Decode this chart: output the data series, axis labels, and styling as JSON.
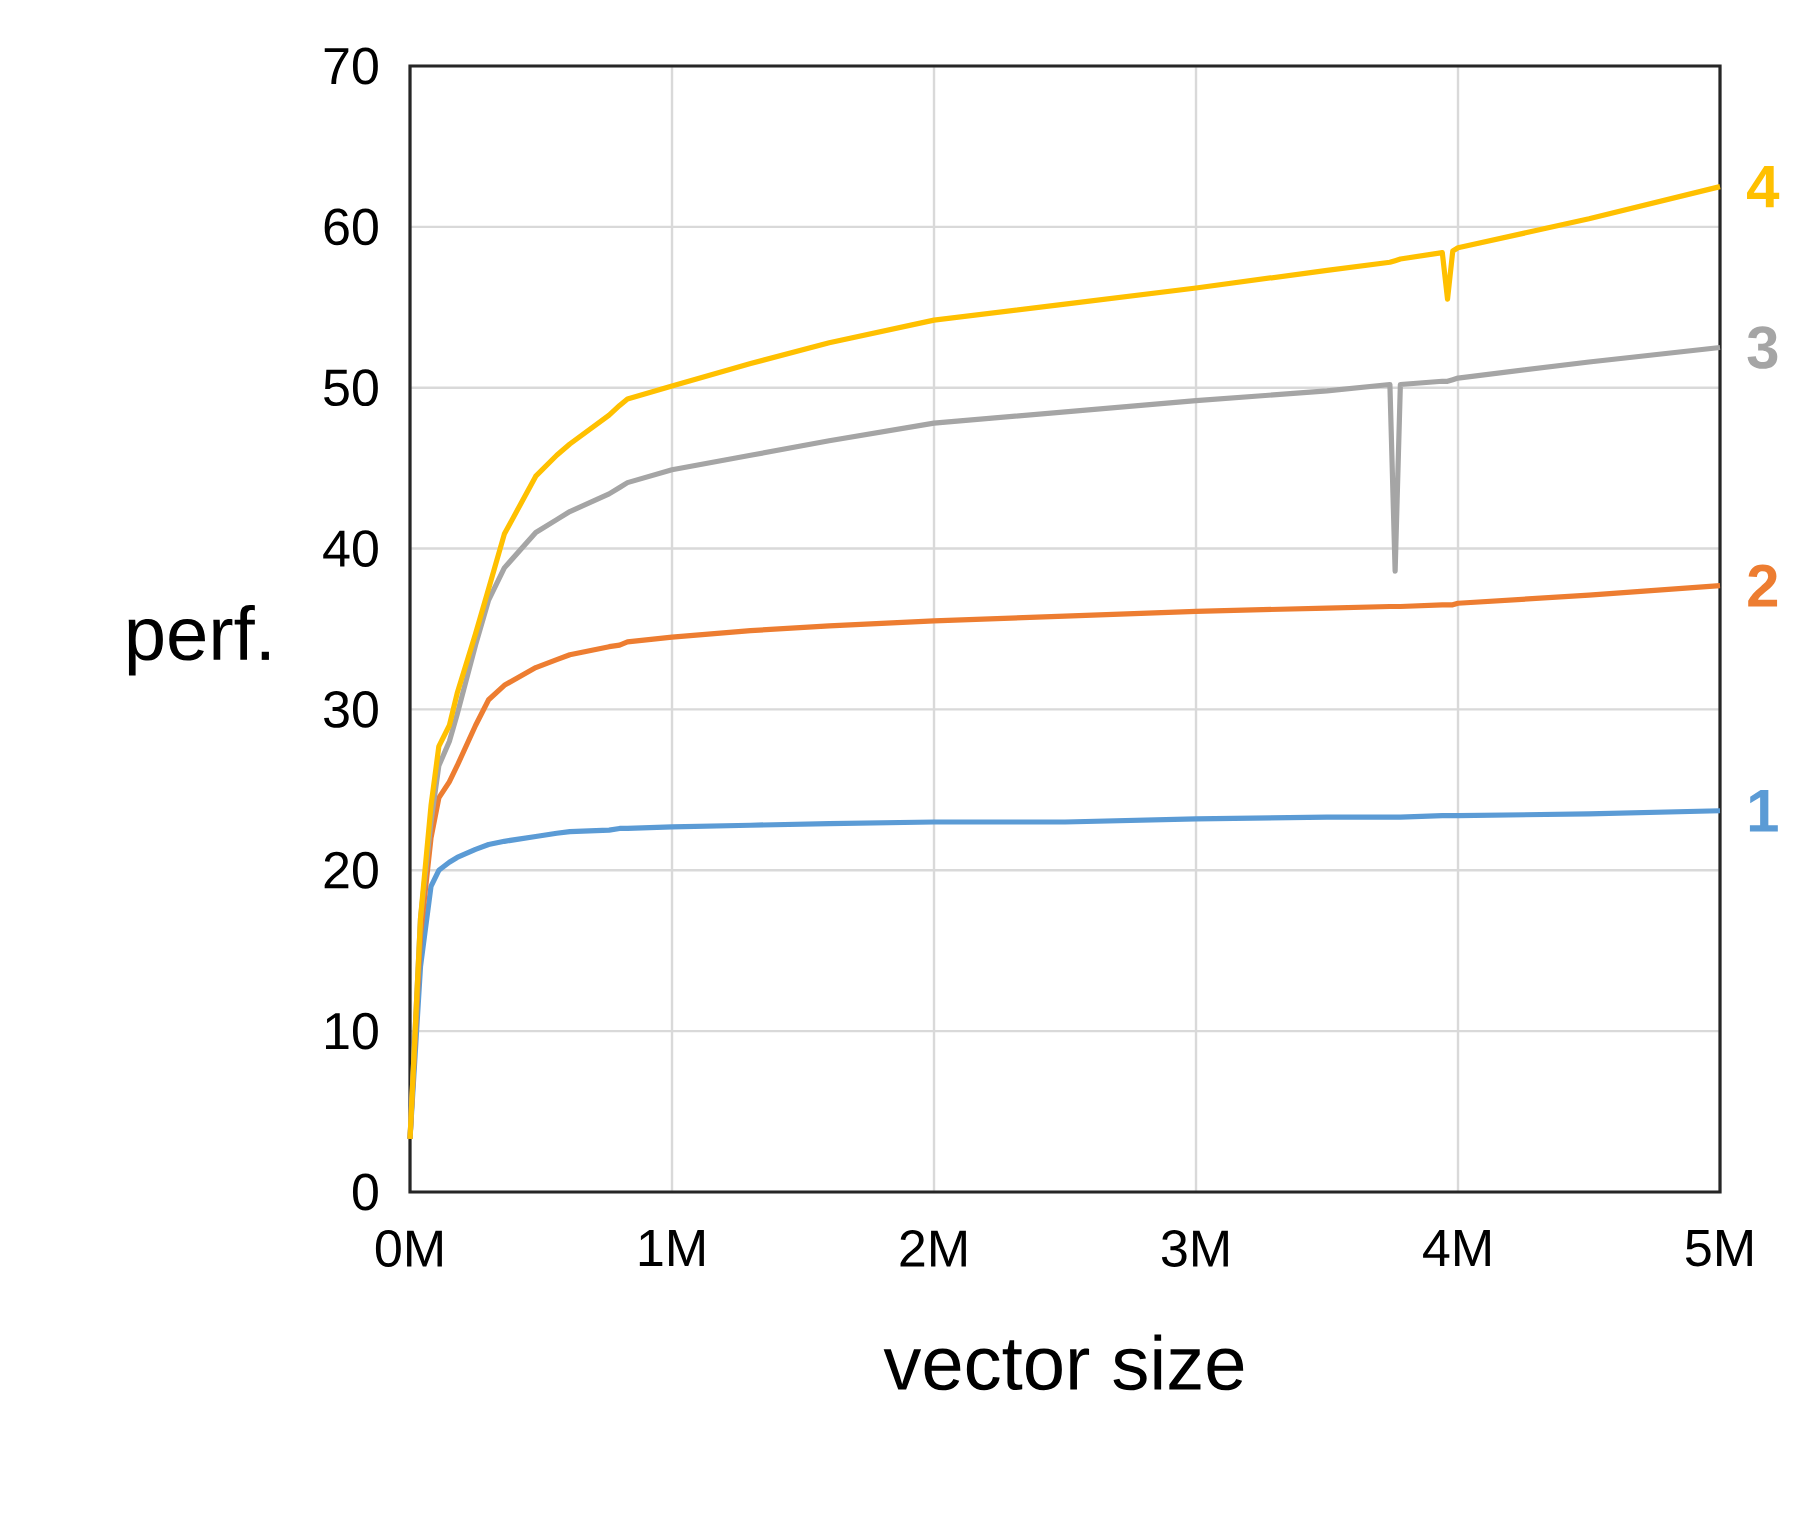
{
  "chart_data": {
    "type": "line",
    "xlabel": "vector size",
    "ylabel": "perf.",
    "xlim": [
      0,
      5
    ],
    "ylim": [
      0,
      70
    ],
    "xticks": [
      {
        "value": 0,
        "label": "0M"
      },
      {
        "value": 1,
        "label": "1M"
      },
      {
        "value": 2,
        "label": "2M"
      },
      {
        "value": 3,
        "label": "3M"
      },
      {
        "value": 4,
        "label": "4M"
      },
      {
        "value": 5,
        "label": "5M"
      }
    ],
    "yticks": [
      0,
      10,
      20,
      30,
      40,
      50,
      60,
      70
    ],
    "grid": true,
    "marker": "none",
    "line_style": "solid",
    "x": [
      0,
      0.04,
      0.08,
      0.11,
      0.15,
      0.18,
      0.25,
      0.3,
      0.36,
      0.48,
      0.56,
      0.61,
      0.76,
      0.8,
      0.83,
      1,
      1.3,
      1.6,
      2,
      2.5,
      3,
      3.5,
      3.74,
      3.76,
      3.78,
      3.94,
      3.96,
      3.98,
      4,
      4.5,
      5
    ],
    "series": [
      {
        "name": "1",
        "color": "#5b9bd5",
        "values": [
          3.3,
          14,
          19,
          20,
          20.5,
          20.8,
          21.3,
          21.6,
          21.8,
          22.1,
          22.3,
          22.4,
          22.5,
          22.6,
          22.6,
          22.7,
          22.8,
          22.9,
          23,
          23,
          23.2,
          23.3,
          23.3,
          23.3,
          23.3,
          23.4,
          23.4,
          23.4,
          23.4,
          23.5,
          23.7
        ]
      },
      {
        "name": "2",
        "color": "#ed7d31",
        "values": [
          3.3,
          16,
          22,
          24.5,
          25.5,
          26.5,
          29,
          30.6,
          31.5,
          32.6,
          33.1,
          33.4,
          33.9,
          34,
          34.2,
          34.5,
          34.9,
          35.2,
          35.5,
          35.8,
          36.1,
          36.3,
          36.4,
          36.4,
          36.4,
          36.5,
          36.5,
          36.5,
          36.6,
          37.1,
          37.7
        ]
      },
      {
        "name": "3",
        "color": "#a5a5a5",
        "values": [
          3.3,
          17,
          23,
          26.5,
          28,
          29.7,
          34,
          36.8,
          38.8,
          41,
          41.8,
          42.3,
          43.4,
          43.8,
          44.1,
          44.9,
          45.8,
          46.7,
          47.8,
          48.5,
          49.2,
          49.8,
          50.2,
          38.6,
          50.2,
          50.4,
          50.4,
          50.5,
          50.6,
          51.6,
          52.5
        ]
      },
      {
        "name": "4",
        "color": "#ffc000",
        "values": [
          3.3,
          17,
          24,
          27.7,
          29,
          31,
          34.7,
          37.5,
          40.9,
          44.5,
          45.8,
          46.5,
          48.3,
          48.9,
          49.3,
          50.1,
          51.5,
          52.8,
          54.2,
          55.2,
          56.2,
          57.3,
          57.8,
          57.9,
          58,
          58.4,
          55.5,
          58.5,
          58.7,
          60.5,
          62.5
        ]
      }
    ]
  }
}
